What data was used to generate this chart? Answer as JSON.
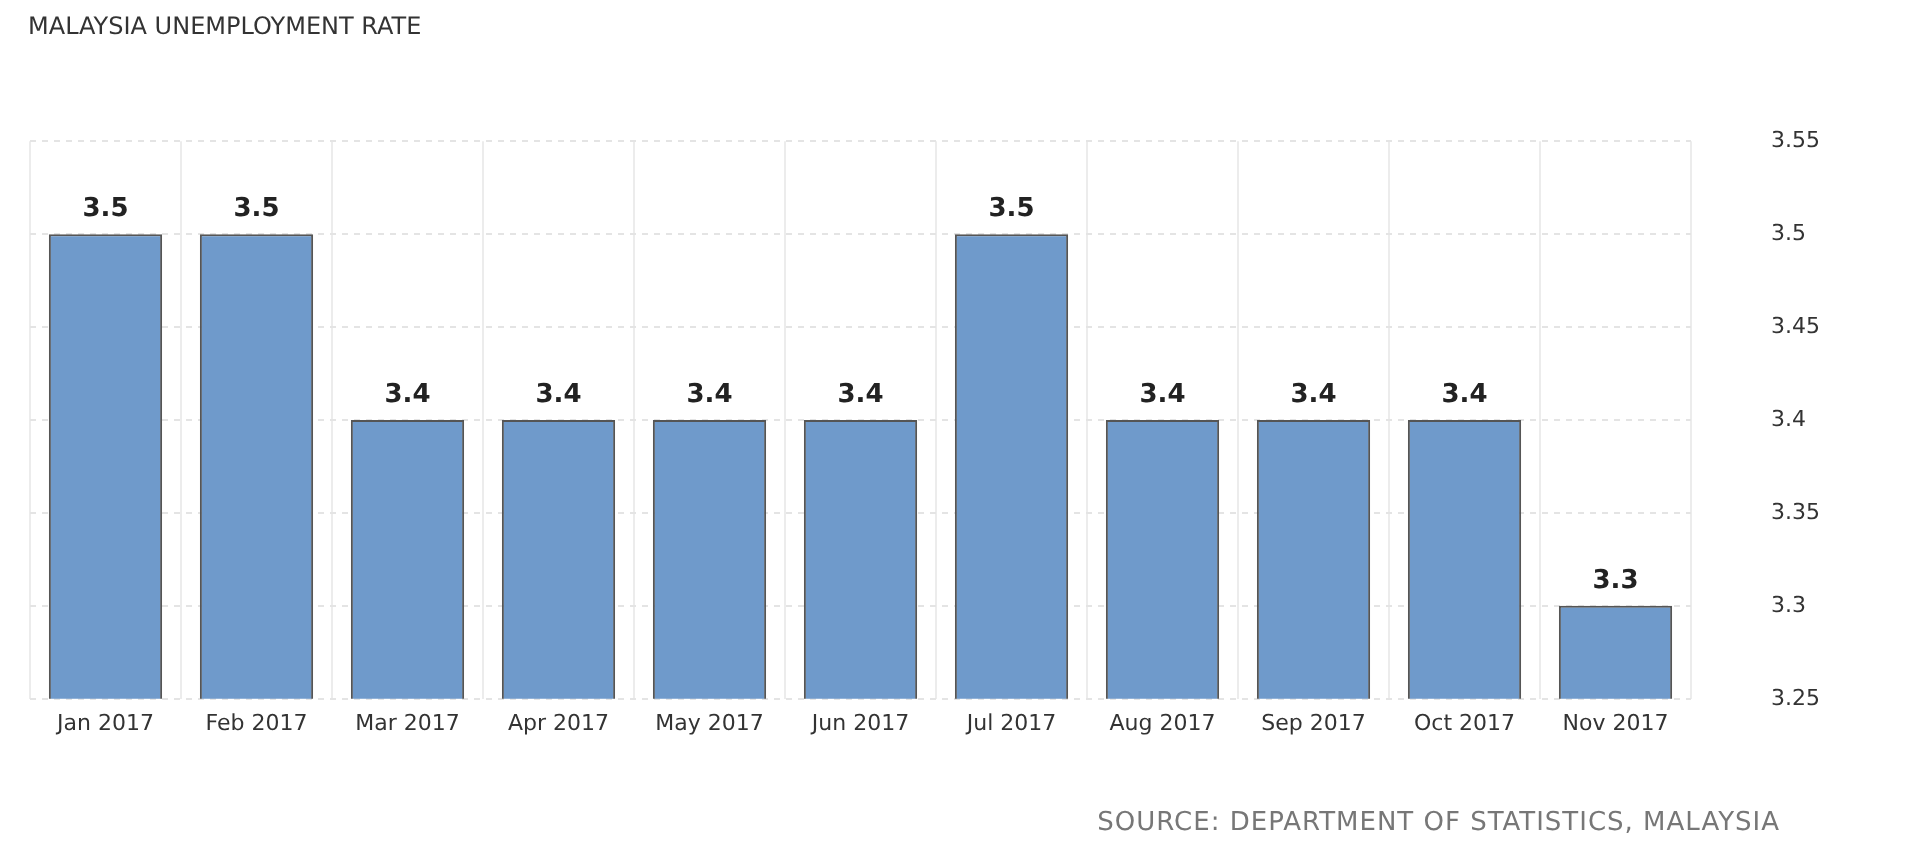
{
  "chart_data": {
    "type": "bar",
    "title": "MALAYSIA UNEMPLOYMENT RATE",
    "categories": [
      "Jan 2017",
      "Feb 2017",
      "Mar 2017",
      "Apr 2017",
      "May 2017",
      "Jun 2017",
      "Jul 2017",
      "Aug 2017",
      "Sep 2017",
      "Oct 2017",
      "Nov 2017"
    ],
    "values": [
      3.5,
      3.5,
      3.4,
      3.4,
      3.4,
      3.4,
      3.5,
      3.4,
      3.4,
      3.4,
      3.3
    ],
    "color": "#6f9acb",
    "ylim": [
      3.25,
      3.55
    ],
    "yticks": [
      3.25,
      3.3,
      3.35,
      3.4,
      3.45,
      3.5,
      3.55
    ],
    "grid": true,
    "data_labels": true,
    "annotations": [
      "SOURCE: DEPARTMENT OF STATISTICS, MALAYSIA"
    ]
  }
}
